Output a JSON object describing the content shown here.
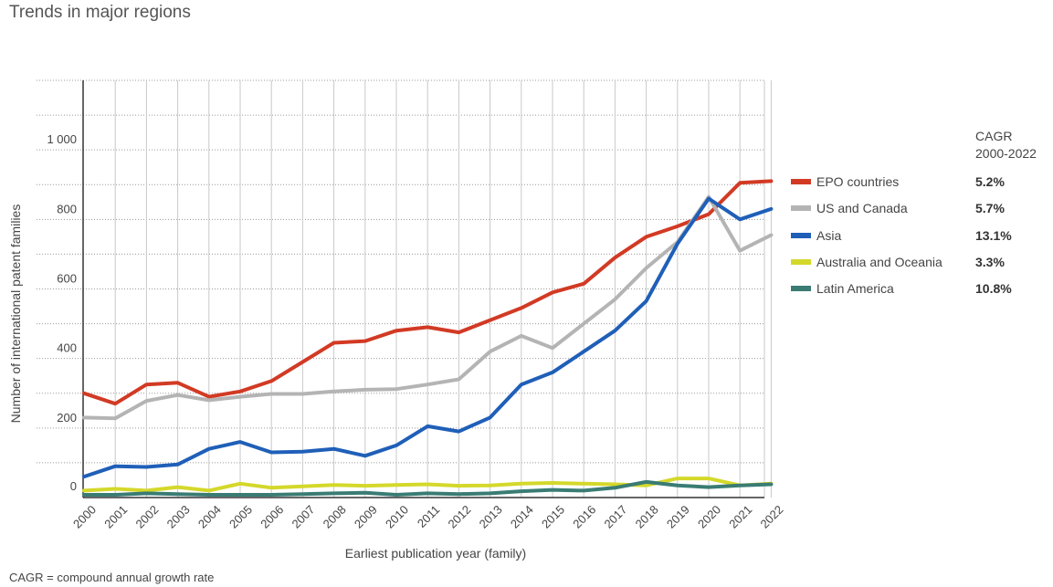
{
  "title": "Trends in major regions",
  "footnote": "CAGR =  compound annual growth rate",
  "legend_header": [
    "CAGR",
    "2000-2022"
  ],
  "chart_data": {
    "type": "line",
    "title": "Trends in major regions",
    "xlabel": "Earliest publication year (family)",
    "ylabel": "Number of international patent families",
    "ylim": [
      0,
      1200
    ],
    "yticks": [
      {
        "value": 0,
        "label": "0"
      },
      {
        "value": 200,
        "label": "200"
      },
      {
        "value": 400,
        "label": "400"
      },
      {
        "value": 600,
        "label": "600"
      },
      {
        "value": 800,
        "label": "800"
      },
      {
        "value": 1000,
        "label": "1 000"
      }
    ],
    "grid": true,
    "x": [
      "2000",
      "2001",
      "2002",
      "2003",
      "2004",
      "2005",
      "2006",
      "2007",
      "2008",
      "2009",
      "2010",
      "2011",
      "2012",
      "2013",
      "2014",
      "2015",
      "2016",
      "2017",
      "2018",
      "2019",
      "2020",
      "2021",
      "2022"
    ],
    "series": [
      {
        "name": "EPO countries",
        "color": "#d23a24",
        "cagr": "5.2%",
        "values": [
          300,
          270,
          325,
          330,
          290,
          305,
          335,
          390,
          445,
          450,
          480,
          490,
          475,
          510,
          545,
          590,
          615,
          690,
          750,
          780,
          815,
          905,
          910
        ]
      },
      {
        "name": "US and Canada",
        "color": "#b4b4b4",
        "cagr": "5.7%",
        "values": [
          230,
          228,
          278,
          295,
          280,
          290,
          298,
          298,
          305,
          310,
          312,
          325,
          340,
          420,
          465,
          430,
          500,
          570,
          660,
          735,
          865,
          710,
          755
        ]
      },
      {
        "name": "Asia",
        "color": "#1f5fb8",
        "cagr": "13.1%",
        "values": [
          60,
          90,
          88,
          95,
          140,
          160,
          130,
          132,
          140,
          120,
          150,
          205,
          190,
          230,
          325,
          360,
          420,
          480,
          565,
          730,
          860,
          800,
          830
        ]
      },
      {
        "name": "Australia and Oceania",
        "color": "#d4d82a",
        "cagr": "3.3%",
        "values": [
          20,
          25,
          20,
          30,
          20,
          40,
          28,
          32,
          36,
          34,
          36,
          38,
          34,
          35,
          40,
          42,
          40,
          38,
          35,
          55,
          55,
          35,
          40
        ]
      },
      {
        "name": "Latin America",
        "color": "#3a7c74",
        "cagr": "10.8%",
        "values": [
          8,
          8,
          12,
          10,
          8,
          8,
          8,
          10,
          12,
          14,
          8,
          12,
          10,
          12,
          18,
          22,
          20,
          28,
          45,
          35,
          30,
          35,
          38
        ]
      }
    ]
  }
}
